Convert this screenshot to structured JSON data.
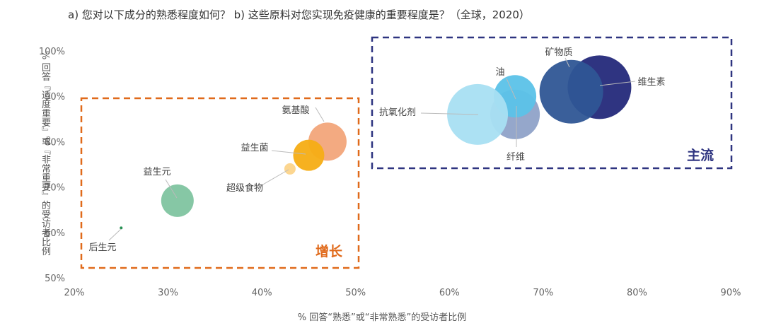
{
  "title": "a) 您对以下成分的熟悉程度如何？   b) 这些原料对您实现免疫健康的重要程度是？（全球，2020）",
  "chart_data": {
    "type": "scatter",
    "subtype": "bubble",
    "title": "a) 您对以下成分的熟悉程度如何？   b) 这些原料对您实现免疫健康的重要程度是？（全球，2020）",
    "xlabel": "% 回答“熟悉”或“非常熟悉”的受访者比例",
    "ylabel": "% 回答『适度重要』或『非常重要』的受访者比例",
    "xlim": [
      20,
      90
    ],
    "ylim": [
      50,
      100
    ],
    "xticks": [
      "20%",
      "30%",
      "40%",
      "50%",
      "60%",
      "70%",
      "80%",
      "90%"
    ],
    "yticks": [
      "50%",
      "60%",
      "70%",
      "80%",
      "90%",
      "100%"
    ],
    "grid": false,
    "points": [
      {
        "label": "后生元",
        "x": 25,
        "y": 61,
        "size": 2,
        "color": "#1a8a4a"
      },
      {
        "label": "益生元",
        "x": 31,
        "y": 67,
        "size": 23,
        "color": "#7fc4a0"
      },
      {
        "label": "超级食物",
        "x": 43,
        "y": 74,
        "size": 8,
        "color": "#fcd48a"
      },
      {
        "label": "氨基酸",
        "x": 47,
        "y": 80,
        "size": 27,
        "color": "#f2a57a"
      },
      {
        "label": "益生菌",
        "x": 45,
        "y": 77,
        "size": 22,
        "color": "#f5ad14"
      },
      {
        "label": "纤维",
        "x": 67,
        "y": 86,
        "size": 35,
        "color": "#8fa2c8"
      },
      {
        "label": "油",
        "x": 67,
        "y": 90,
        "size": 30,
        "color": "#5bc2e8"
      },
      {
        "label": "抗氧化剂",
        "x": 63,
        "y": 86,
        "size": 43,
        "color": "#a8dff2"
      },
      {
        "label": "维生素",
        "x": 76,
        "y": 92,
        "size": 45,
        "color": "#24297a"
      },
      {
        "label": "矿物质",
        "x": 73,
        "y": 91,
        "size": 45,
        "color": "#2f5695"
      }
    ],
    "annotations": [
      "增长",
      "主流"
    ]
  },
  "groups": {
    "growth": {
      "label": "增长",
      "color": "#e06a1b"
    },
    "mainstream": {
      "label": "主流",
      "color": "#2e3480"
    }
  }
}
